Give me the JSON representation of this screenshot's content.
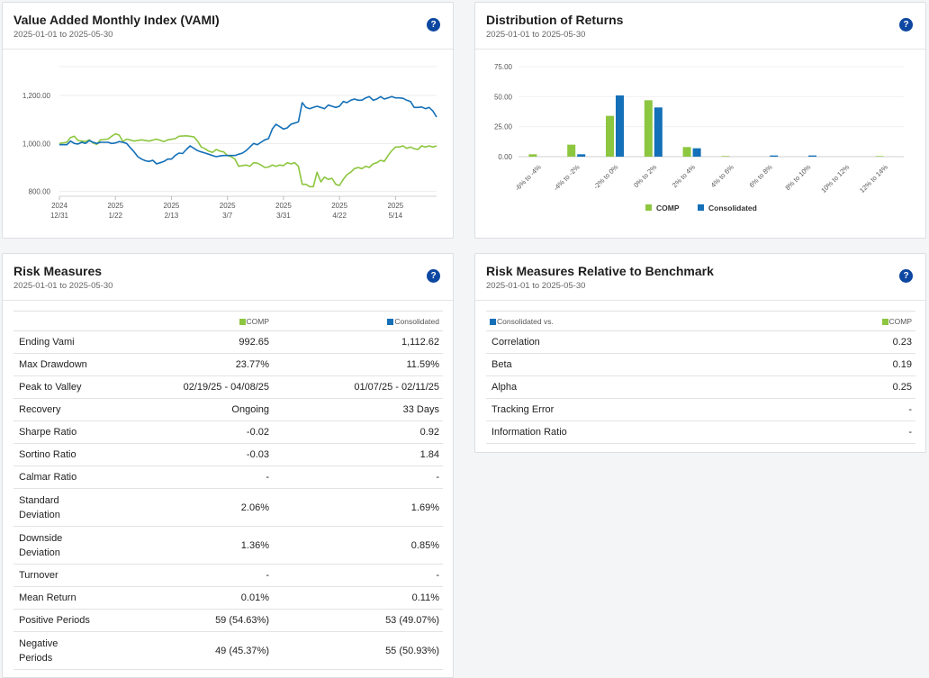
{
  "colors": {
    "comp": "#8dc63f",
    "consolidated": "#1470b8",
    "help": "#0d47a1"
  },
  "vami": {
    "title": "Value Added Monthly Index (VAMI)",
    "subtitle": "2025-01-01 to 2025-05-30",
    "help_icon": "?"
  },
  "dist": {
    "title": "Distribution of Returns",
    "subtitle": "2025-01-01 to 2025-05-30",
    "help_icon": "?"
  },
  "risk": {
    "title": "Risk Measures",
    "subtitle": "2025-01-01 to 2025-05-30",
    "help_icon": "?",
    "col_comp": "COMP",
    "col_cons": "Consolidated",
    "rows": [
      {
        "label": "Ending Vami",
        "comp": "992.65",
        "cons": "1,112.62"
      },
      {
        "label": "Max Drawdown",
        "comp": "23.77%",
        "cons": "11.59%"
      },
      {
        "label": "Peak to Valley",
        "comp": "02/19/25 - 04/08/25",
        "cons": "01/07/25 - 02/11/25"
      },
      {
        "label": "Recovery",
        "comp": "Ongoing",
        "cons": "33 Days"
      },
      {
        "label": "Sharpe Ratio",
        "comp": "-0.02",
        "cons": "0.92"
      },
      {
        "label": "Sortino Ratio",
        "comp": "-0.03",
        "cons": "1.84"
      },
      {
        "label": "Calmar Ratio",
        "comp": "-",
        "cons": "-"
      },
      {
        "label1": "Standard",
        "label2": "Deviation",
        "comp": "2.06%",
        "cons": "1.69%"
      },
      {
        "label1": "Downside",
        "label2": "Deviation",
        "comp": "1.36%",
        "cons": "0.85%"
      },
      {
        "label": "Turnover",
        "comp": "-",
        "cons": "-"
      },
      {
        "label": "Mean Return",
        "comp": "0.01%",
        "cons": "0.11%"
      },
      {
        "label": "Positive Periods",
        "comp": "59 (54.63%)",
        "cons": "53 (49.07%)"
      },
      {
        "label1": "Negative",
        "label2": "Periods",
        "comp": "49 (45.37%)",
        "cons": "55 (50.93%)"
      }
    ]
  },
  "relative": {
    "title": "Risk Measures Relative to Benchmark",
    "subtitle": "2025-01-01 to 2025-05-30",
    "help_icon": "?",
    "col_left": "Consolidated vs.",
    "col_right": "COMP",
    "rows": [
      {
        "label": "Correlation",
        "value": "0.23"
      },
      {
        "label": "Beta",
        "value": "0.19"
      },
      {
        "label": "Alpha",
        "value": "0.25"
      },
      {
        "label": "Tracking Error",
        "value": "-"
      },
      {
        "label": "Information Ratio",
        "value": "-"
      }
    ]
  },
  "chart_data": [
    {
      "type": "line",
      "ylim": [
        780,
        1320
      ],
      "yticks": [
        "1,200.00",
        "1,000.00",
        "800.00"
      ],
      "ytick_values": [
        1200,
        1000,
        800
      ],
      "xticks": [
        {
          "year": "2024",
          "date": "12/31",
          "x": 0
        },
        {
          "year": "2025",
          "date": "1/22",
          "x": 15
        },
        {
          "year": "2025",
          "date": "2/13",
          "x": 30
        },
        {
          "year": "2025",
          "date": "3/7",
          "x": 45
        },
        {
          "year": "2025",
          "date": "3/31",
          "x": 60
        },
        {
          "year": "2025",
          "date": "4/22",
          "x": 75
        },
        {
          "year": "2025",
          "date": "5/14",
          "x": 90
        }
      ],
      "x_max": 101,
      "series": [
        {
          "name": "COMP",
          "points": [
            [
              0,
              1000
            ],
            [
              2,
              1005
            ],
            [
              3,
              1025
            ],
            [
              4,
              1030
            ],
            [
              5,
              1012
            ],
            [
              6,
              1010
            ],
            [
              7,
              1008
            ],
            [
              8,
              1015
            ],
            [
              9,
              1002
            ],
            [
              10,
              996
            ],
            [
              11,
              1015
            ],
            [
              13,
              1018
            ],
            [
              14,
              1030
            ],
            [
              15,
              1040
            ],
            [
              16,
              1035
            ],
            [
              17,
              1008
            ],
            [
              18,
              1018
            ],
            [
              20,
              1010
            ],
            [
              22,
              1015
            ],
            [
              24,
              1010
            ],
            [
              26,
              1018
            ],
            [
              28,
              1008
            ],
            [
              29,
              1015
            ],
            [
              31,
              1020
            ],
            [
              32,
              1030
            ],
            [
              34,
              1032
            ],
            [
              36,
              1028
            ],
            [
              37,
              1010
            ],
            [
              38,
              985
            ],
            [
              39,
              978
            ],
            [
              40,
              968
            ],
            [
              41,
              963
            ],
            [
              42,
              975
            ],
            [
              43,
              968
            ],
            [
              44,
              965
            ],
            [
              45,
              950
            ],
            [
              46,
              945
            ],
            [
              47,
              935
            ],
            [
              48,
              905
            ],
            [
              49,
              908
            ],
            [
              50,
              910
            ],
            [
              51,
              905
            ],
            [
              52,
              920
            ],
            [
              53,
              918
            ],
            [
              54,
              910
            ],
            [
              55,
              900
            ],
            [
              56,
              902
            ],
            [
              57,
              910
            ],
            [
              58,
              905
            ],
            [
              59,
              910
            ],
            [
              60,
              908
            ],
            [
              61,
              920
            ],
            [
              62,
              915
            ],
            [
              63,
              920
            ],
            [
              64,
              905
            ],
            [
              65,
              830
            ],
            [
              66,
              830
            ],
            [
              67,
              820
            ],
            [
              68,
              820
            ],
            [
              69,
              880
            ],
            [
              70,
              840
            ],
            [
              71,
              860
            ],
            [
              72,
              850
            ],
            [
              73,
              855
            ],
            [
              74,
              830
            ],
            [
              75,
              825
            ],
            [
              76,
              850
            ],
            [
              77,
              870
            ],
            [
              78,
              880
            ],
            [
              79,
              895
            ],
            [
              80,
              900
            ],
            [
              81,
              895
            ],
            [
              82,
              905
            ],
            [
              83,
              900
            ],
            [
              84,
              915
            ],
            [
              85,
              920
            ],
            [
              86,
              930
            ],
            [
              87,
              925
            ],
            [
              88,
              950
            ],
            [
              89,
              970
            ],
            [
              90,
              985
            ],
            [
              91,
              985
            ],
            [
              92,
              990
            ],
            [
              93,
              980
            ],
            [
              94,
              985
            ],
            [
              95,
              978
            ],
            [
              96,
              975
            ],
            [
              97,
              990
            ],
            [
              98,
              985
            ],
            [
              99,
              990
            ],
            [
              100,
              985
            ],
            [
              101,
              990
            ]
          ]
        },
        {
          "name": "Consolidated",
          "points": [
            [
              0,
              995
            ],
            [
              2,
              995
            ],
            [
              3,
              1010
            ],
            [
              4,
              1000
            ],
            [
              5,
              998
            ],
            [
              6,
              1005
            ],
            [
              7,
              1000
            ],
            [
              8,
              1012
            ],
            [
              9,
              1005
            ],
            [
              10,
              1000
            ],
            [
              11,
              1005
            ],
            [
              13,
              1005
            ],
            [
              14,
              1000
            ],
            [
              15,
              1002
            ],
            [
              16,
              1008
            ],
            [
              17,
              1005
            ],
            [
              18,
              1000
            ],
            [
              19,
              982
            ],
            [
              20,
              965
            ],
            [
              21,
              945
            ],
            [
              22,
              935
            ],
            [
              23,
              928
            ],
            [
              24,
              925
            ],
            [
              25,
              930
            ],
            [
              26,
              915
            ],
            [
              27,
              920
            ],
            [
              28,
              925
            ],
            [
              29,
              935
            ],
            [
              30,
              935
            ],
            [
              31,
              950
            ],
            [
              32,
              960
            ],
            [
              33,
              958
            ],
            [
              34,
              975
            ],
            [
              35,
              990
            ],
            [
              36,
              980
            ],
            [
              37,
              970
            ],
            [
              38,
              965
            ],
            [
              39,
              960
            ],
            [
              40,
              955
            ],
            [
              41,
              950
            ],
            [
              42,
              945
            ],
            [
              43,
              948
            ],
            [
              44,
              950
            ],
            [
              45,
              950
            ],
            [
              46,
              950
            ],
            [
              47,
              950
            ],
            [
              48,
              955
            ],
            [
              49,
              960
            ],
            [
              50,
              970
            ],
            [
              51,
              985
            ],
            [
              52,
              1000
            ],
            [
              53,
              995
            ],
            [
              54,
              1005
            ],
            [
              55,
              1015
            ],
            [
              56,
              1020
            ],
            [
              57,
              1060
            ],
            [
              58,
              1080
            ],
            [
              59,
              1070
            ],
            [
              60,
              1060
            ],
            [
              61,
              1065
            ],
            [
              62,
              1080
            ],
            [
              63,
              1085
            ],
            [
              64,
              1090
            ],
            [
              65,
              1170
            ],
            [
              66,
              1150
            ],
            [
              67,
              1145
            ],
            [
              68,
              1150
            ],
            [
              69,
              1155
            ],
            [
              70,
              1150
            ],
            [
              71,
              1145
            ],
            [
              72,
              1160
            ],
            [
              73,
              1155
            ],
            [
              74,
              1150
            ],
            [
              75,
              1155
            ],
            [
              76,
              1175
            ],
            [
              77,
              1170
            ],
            [
              78,
              1180
            ],
            [
              79,
              1185
            ],
            [
              80,
              1180
            ],
            [
              81,
              1180
            ],
            [
              82,
              1190
            ],
            [
              83,
              1195
            ],
            [
              84,
              1180
            ],
            [
              85,
              1185
            ],
            [
              86,
              1195
            ],
            [
              87,
              1185
            ],
            [
              88,
              1190
            ],
            [
              89,
              1195
            ],
            [
              90,
              1190
            ],
            [
              91,
              1190
            ],
            [
              92,
              1188
            ],
            [
              93,
              1180
            ],
            [
              94,
              1175
            ],
            [
              95,
              1150
            ],
            [
              96,
              1150
            ],
            [
              97,
              1152
            ],
            [
              98,
              1145
            ],
            [
              99,
              1150
            ],
            [
              100,
              1135
            ],
            [
              101,
              1110
            ]
          ]
        }
      ]
    },
    {
      "type": "bar",
      "ylim": [
        0,
        75
      ],
      "yticks": [
        "75.00",
        "50.00",
        "25.00",
        "0.00"
      ],
      "ytick_values": [
        75,
        50,
        25,
        0
      ],
      "categories": [
        "-6% to -4%",
        "-4% to -2%",
        "-2% to 0%",
        "0% to 2%",
        "2% to 4%",
        "4% to 6%",
        "6% to 8%",
        "8% to 10%",
        "10% to 12%",
        "12% to 14%"
      ],
      "series": [
        {
          "name": "COMP",
          "values": [
            2,
            10,
            34,
            47,
            8,
            0.5,
            0,
            0,
            0,
            0.5
          ]
        },
        {
          "name": "Consolidated",
          "values": [
            0,
            2,
            51,
            41,
            7,
            0,
            1,
            1,
            0,
            0
          ]
        }
      ],
      "legend": "bottom"
    }
  ]
}
